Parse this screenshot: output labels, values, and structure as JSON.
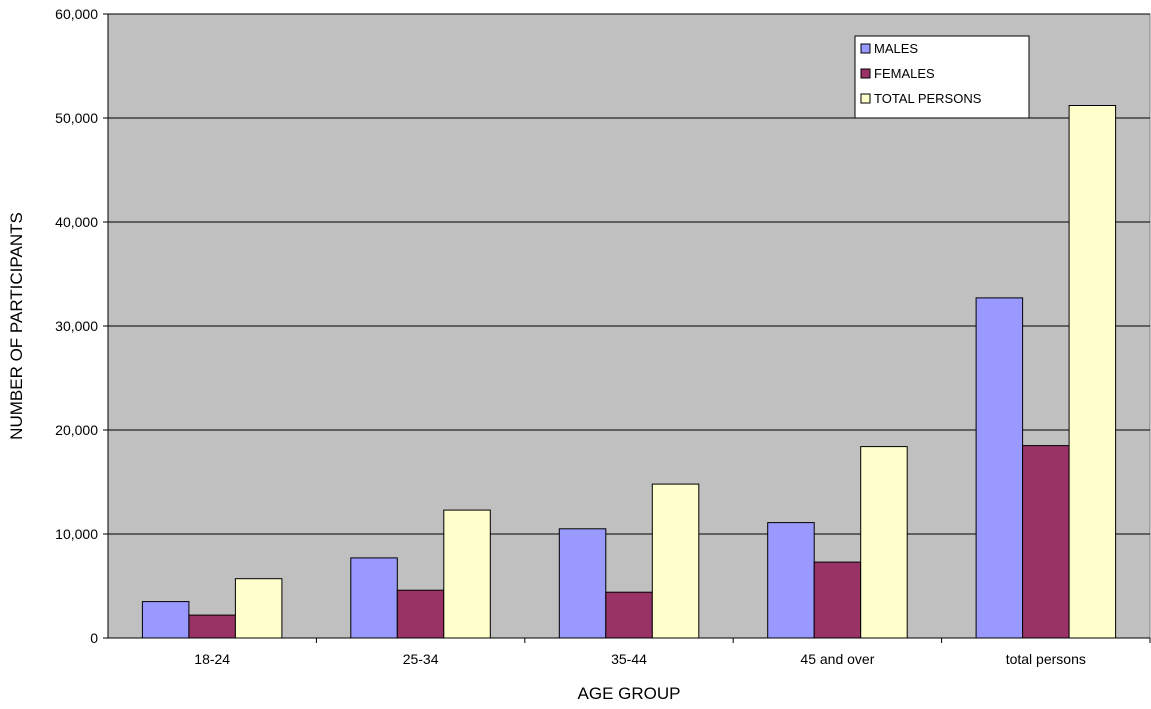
{
  "chart_data": {
    "type": "bar",
    "xlabel": "AGE GROUP",
    "ylabel": "NUMBER OF PARTICIPANTS",
    "ylim": [
      0,
      60000
    ],
    "yticks": [
      0,
      10000,
      20000,
      30000,
      40000,
      50000,
      60000
    ],
    "ytick_labels": [
      "0",
      "10,000",
      "20,000",
      "30,000",
      "40,000",
      "50,000",
      "60,000"
    ],
    "categories": [
      "18-24",
      "25-34",
      "35-44",
      "45 and over",
      "total persons"
    ],
    "series": [
      {
        "name": "MALES",
        "color": "#9999ff",
        "values": [
          3500,
          7700,
          10500,
          11100,
          32700
        ]
      },
      {
        "name": "FEMALES",
        "color": "#993366",
        "values": [
          2200,
          4600,
          4400,
          7300,
          18500
        ]
      },
      {
        "name": "TOTAL PERSONS",
        "color": "#ffffcc",
        "values": [
          5700,
          12300,
          14800,
          18400,
          51200
        ]
      }
    ],
    "grid": true,
    "plot_background": "#c0c0c0",
    "legend_position": "top-right"
  }
}
